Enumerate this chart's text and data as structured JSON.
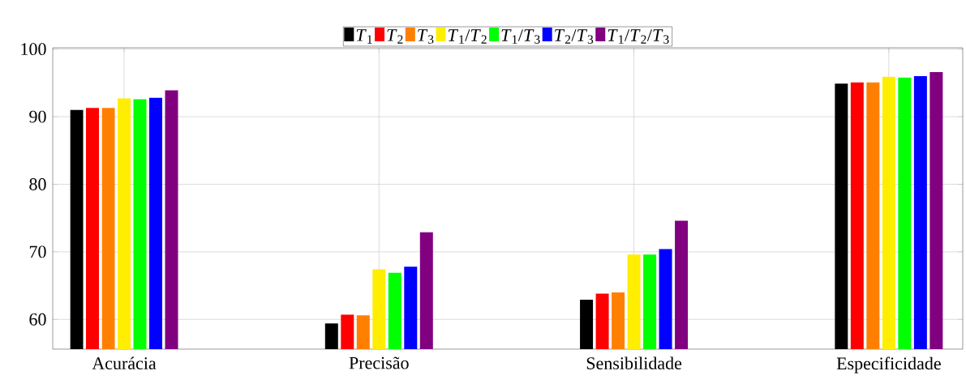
{
  "chart_data": {
    "type": "bar",
    "categories": [
      "Acurácia",
      "Precisão",
      "Sensibilidade",
      "Especificidade"
    ],
    "series": [
      {
        "name": "*T*$_{1}$",
        "color": "#000000",
        "values": [
          91.0,
          59.4,
          62.9,
          94.9
        ]
      },
      {
        "name": "*T*$_{2}$",
        "color": "#ff0000",
        "values": [
          91.3,
          60.7,
          63.8,
          95.1
        ]
      },
      {
        "name": "*T*$_{3}$",
        "color": "#ff8000",
        "values": [
          91.3,
          60.6,
          64.0,
          95.1
        ]
      },
      {
        "name": "*T*$_{1}$/*T*$_{2}$",
        "color": "#ffee00",
        "values": [
          92.7,
          67.4,
          69.6,
          95.9
        ]
      },
      {
        "name": "*T*$_{1}$/*T*$_{3}$",
        "color": "#00ff00",
        "values": [
          92.6,
          66.9,
          69.6,
          95.8
        ]
      },
      {
        "name": "*T*$_{2}$/*T*$_{3}$",
        "color": "#0000ff",
        "values": [
          92.8,
          67.8,
          70.4,
          96.0
        ]
      },
      {
        "name": "*T*$_{1}$/*T*$_{2}$/*T*$_{3}$",
        "color": "#800080",
        "values": [
          93.9,
          72.9,
          74.6,
          96.6
        ]
      }
    ],
    "ylim": [
      55.6,
      100.2
    ],
    "yticks": [
      60,
      70,
      80,
      90,
      100
    ],
    "grid": true,
    "legend": "top"
  }
}
